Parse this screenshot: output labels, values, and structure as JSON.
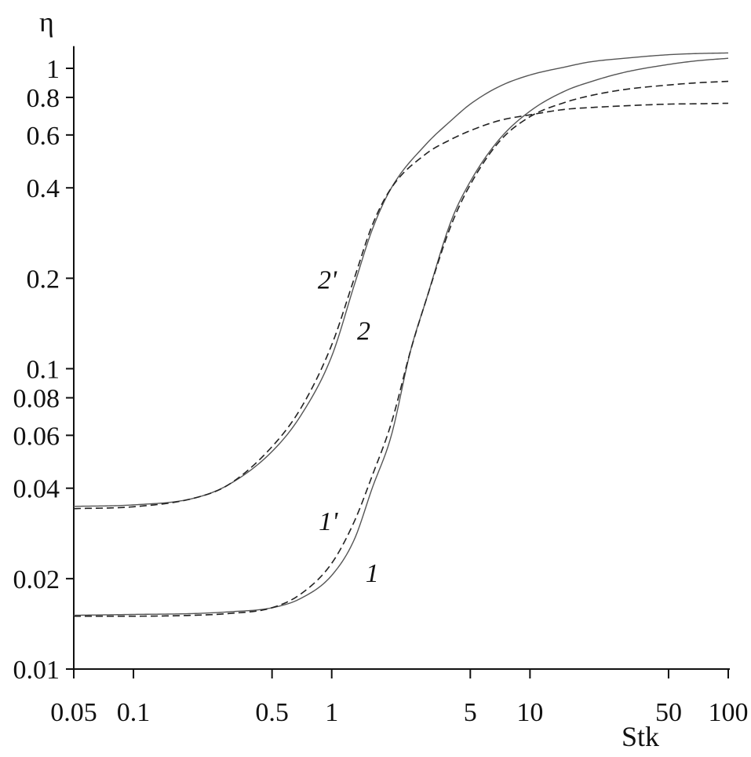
{
  "chart_data": {
    "type": "line",
    "xlabel": "Stk",
    "ylabel": "η",
    "xscale": "log",
    "yscale": "log",
    "xlim": [
      0.05,
      100
    ],
    "ylim": [
      0.01,
      1.15
    ],
    "grid": false,
    "x_ticks": [
      {
        "value": 0.05,
        "label": "0.05"
      },
      {
        "value": 0.1,
        "label": "0.1"
      },
      {
        "value": 0.5,
        "label": "0.5"
      },
      {
        "value": 1,
        "label": "1"
      },
      {
        "value": 5,
        "label": "5"
      },
      {
        "value": 10,
        "label": "10"
      },
      {
        "value": 50,
        "label": "50"
      },
      {
        "value": 100,
        "label": "100"
      }
    ],
    "y_ticks": [
      {
        "value": 0.01,
        "label": "0.01"
      },
      {
        "value": 0.02,
        "label": "0.02"
      },
      {
        "value": 0.04,
        "label": "0.04"
      },
      {
        "value": 0.06,
        "label": "0.06"
      },
      {
        "value": 0.08,
        "label": "0.08"
      },
      {
        "value": 0.1,
        "label": "0.1"
      },
      {
        "value": 0.2,
        "label": "0.2"
      },
      {
        "value": 0.4,
        "label": "0.4"
      },
      {
        "value": 0.6,
        "label": "0.6"
      },
      {
        "value": 0.8,
        "label": "0.8"
      },
      {
        "value": 1,
        "label": "1"
      }
    ],
    "series": [
      {
        "name": "1",
        "style": "solid",
        "x": [
          0.05,
          0.1,
          0.2,
          0.3,
          0.5,
          0.7,
          1,
          1.3,
          1.6,
          2,
          2.5,
          3,
          4,
          5,
          7,
          10,
          15,
          20,
          30,
          50,
          70,
          100
        ],
        "y": [
          0.0151,
          0.0152,
          0.0153,
          0.0155,
          0.016,
          0.0172,
          0.0205,
          0.027,
          0.04,
          0.06,
          0.115,
          0.17,
          0.31,
          0.42,
          0.58,
          0.72,
          0.84,
          0.9,
          0.97,
          1.03,
          1.06,
          1.08
        ]
      },
      {
        "name": "1'",
        "style": "dashed",
        "x": [
          0.05,
          0.1,
          0.2,
          0.3,
          0.5,
          0.7,
          1,
          1.3,
          1.6,
          2,
          2.5,
          3,
          4,
          5,
          7,
          10,
          15,
          20,
          30,
          50,
          70,
          100
        ],
        "y": [
          0.015,
          0.015,
          0.0151,
          0.0153,
          0.016,
          0.0178,
          0.0225,
          0.031,
          0.044,
          0.066,
          0.115,
          0.17,
          0.3,
          0.41,
          0.57,
          0.69,
          0.77,
          0.81,
          0.85,
          0.88,
          0.895,
          0.905
        ]
      },
      {
        "name": "2",
        "style": "solid",
        "x": [
          0.05,
          0.1,
          0.2,
          0.3,
          0.5,
          0.7,
          1,
          1.3,
          1.6,
          2,
          3,
          4,
          5,
          7,
          10,
          15,
          20,
          30,
          50,
          70,
          100
        ],
        "y": [
          0.0348,
          0.0352,
          0.037,
          0.041,
          0.053,
          0.07,
          0.11,
          0.19,
          0.29,
          0.4,
          0.56,
          0.67,
          0.76,
          0.87,
          0.95,
          1.01,
          1.05,
          1.08,
          1.11,
          1.12,
          1.125
        ]
      },
      {
        "name": "2'",
        "style": "dashed",
        "x": [
          0.05,
          0.1,
          0.2,
          0.3,
          0.5,
          0.7,
          1,
          1.3,
          1.6,
          2,
          3,
          4,
          5,
          7,
          10,
          15,
          20,
          30,
          50,
          70,
          100
        ],
        "y": [
          0.0342,
          0.0347,
          0.037,
          0.041,
          0.055,
          0.074,
          0.12,
          0.2,
          0.3,
          0.4,
          0.52,
          0.58,
          0.62,
          0.67,
          0.7,
          0.73,
          0.74,
          0.75,
          0.76,
          0.762,
          0.765
        ]
      }
    ],
    "annotations": [
      {
        "text": "1",
        "x": 1.6,
        "y": 0.0195
      },
      {
        "text": "1'",
        "x": 0.96,
        "y": 0.029
      },
      {
        "text": "2",
        "x": 1.45,
        "y": 0.125
      },
      {
        "text": "2'",
        "x": 0.95,
        "y": 0.185
      }
    ]
  }
}
